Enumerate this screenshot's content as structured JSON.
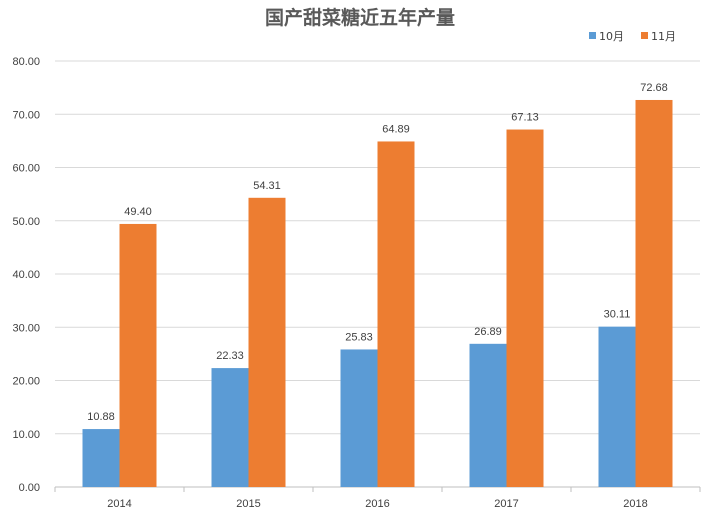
{
  "chart_data": {
    "type": "bar",
    "title": "国产甜菜糖近五年产量",
    "categories": [
      "2014",
      "2015",
      "2016",
      "2017",
      "2018"
    ],
    "series": [
      {
        "name": "10月",
        "color": "#5B9BD5",
        "values": [
          10.88,
          22.33,
          25.83,
          26.89,
          30.11
        ]
      },
      {
        "name": "11月",
        "color": "#ED7D31",
        "values": [
          49.4,
          54.31,
          64.89,
          67.13,
          72.68
        ]
      }
    ],
    "value_labels": [
      [
        "10.88",
        "22.33",
        "25.83",
        "26.89",
        "30.11"
      ],
      [
        "49.40",
        "54.31",
        "64.89",
        "67.13",
        "72.68"
      ]
    ],
    "y_ticks": [
      "0.00",
      "10.00",
      "20.00",
      "30.00",
      "40.00",
      "50.00",
      "60.00",
      "70.00",
      "80.00"
    ],
    "ylim": [
      0,
      80
    ],
    "grid": true,
    "legend_position": "top-right",
    "xlabel": "",
    "ylabel": ""
  }
}
